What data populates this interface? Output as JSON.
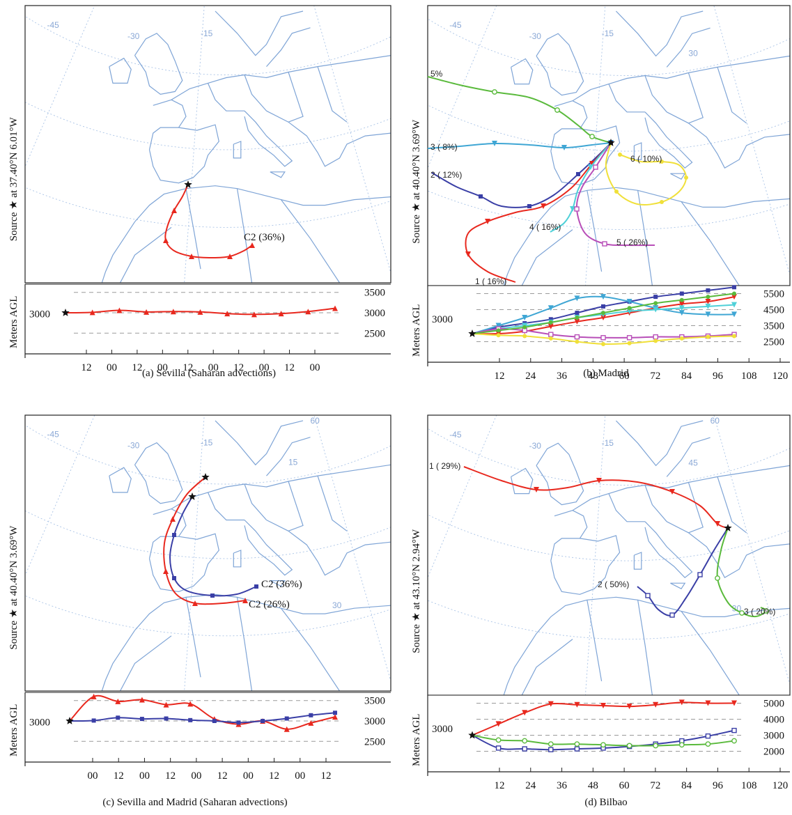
{
  "figure": {
    "panels": [
      {
        "id": "a",
        "caption": "(a)  Sevilla (Saharan advections)",
        "source_label": "Source ★ at 37.40°N 6.01°W",
        "y_axis_label": "Meters AGL",
        "start_level": "3000",
        "lat_lon_labels": [
          "-45",
          "-30",
          "-15"
        ],
        "cluster_labels": [
          "C2 (36%)"
        ]
      },
      {
        "id": "b",
        "caption": "(b)  Madrid",
        "source_label": "Source ★ at 40.40°N 3.69°W",
        "y_axis_label": "Meters AGL",
        "start_level": "3000",
        "lat_lon_labels": [
          "-45",
          "-30",
          "-15",
          "30"
        ],
        "cluster_labels": [
          "1 ( 16%)",
          "2 ( 12%)",
          "3 ( 8%)",
          "4 ( 16%)",
          "5 ( 26%)",
          "6 ( 10%)",
          "5%"
        ]
      },
      {
        "id": "c",
        "caption": "(c)  Sevilla and Madrid (Saharan advections)",
        "source_label": "Source ★ at 40.40°N 3.69°W",
        "y_axis_label": "Meters AGL",
        "start_level": "3000",
        "lat_lon_labels": [
          "-45",
          "-30",
          "-15",
          "15",
          "30",
          "60"
        ],
        "cluster_labels": [
          "C2 (36%)",
          "C2 (26%)"
        ]
      },
      {
        "id": "d",
        "caption": "(d)  Bilbao",
        "source_label": "Source ★ at 43.10°N 2.94°W",
        "y_axis_label": "Meters AGL",
        "start_level": "3000",
        "lat_lon_labels": [
          "-45",
          "-30",
          "-15",
          "45",
          "30",
          "60"
        ],
        "cluster_labels": [
          "1 ( 29%)",
          "2 ( 50%)",
          "3 ( 20%)"
        ]
      }
    ],
    "colors": {
      "red": "#e8281e",
      "blue": "#3a3fa6",
      "green": "#5aba3c",
      "cyan": "#3fa6d4",
      "teal": "#4fd0d8",
      "magenta": "#b84fb8",
      "yellow": "#f0e03a",
      "map_lines": "#7ea4d6"
    }
  },
  "chart_data": [
    {
      "type": "line",
      "panel": "a",
      "title": "",
      "ylabel": "Meters AGL",
      "x_tick_labels": [
        "12",
        "00",
        "12",
        "00",
        "12",
        "00",
        "12",
        "00",
        "12",
        "00"
      ],
      "y_tick_labels": [
        "3500",
        "3000",
        "2500"
      ],
      "ylim": [
        2300,
        3700
      ],
      "series": [
        {
          "name": "C2 (36%)",
          "color": "#e8281e",
          "values": [
            3000,
            3010,
            3060,
            3020,
            3030,
            3020,
            2980,
            2960,
            2980,
            3030,
            3110
          ]
        }
      ]
    },
    {
      "type": "line",
      "panel": "b",
      "title": "",
      "ylabel": "Meters AGL",
      "x": [
        0,
        12,
        24,
        36,
        48,
        60,
        72,
        84,
        96,
        108,
        120
      ],
      "x_tick_labels": [
        "12",
        "24",
        "36",
        "48",
        "60",
        "72",
        "84",
        "96",
        "108",
        "120"
      ],
      "y_tick_labels": [
        "5500",
        "4500",
        "3500",
        "2500"
      ],
      "ylim": [
        2000,
        6000
      ],
      "series": [
        {
          "name": "1 ( 16%)",
          "color": "#e8281e",
          "values": [
            3000,
            3000,
            3150,
            3450,
            3750,
            4000,
            4300,
            4600,
            4850,
            5000,
            5300
          ]
        },
        {
          "name": "2 ( 12%)",
          "color": "#3a3fa6",
          "values": [
            3000,
            3400,
            3650,
            3900,
            4300,
            4700,
            5000,
            5300,
            5500,
            5700,
            5900
          ]
        },
        {
          "name": "3 ( 8%)",
          "color": "#3fa6d4",
          "values": [
            3000,
            3500,
            4000,
            4600,
            5200,
            5300,
            5000,
            4600,
            4300,
            4200,
            4200
          ]
        },
        {
          "name": "4 ( 16%)",
          "color": "#4fd0d8",
          "values": [
            3000,
            3300,
            3500,
            3700,
            4000,
            4200,
            4400,
            4500,
            4600,
            4700,
            4800
          ]
        },
        {
          "name": "5 ( 26%)",
          "color": "#b84fb8",
          "values": [
            3000,
            3300,
            3200,
            2950,
            2800,
            2750,
            2750,
            2800,
            2800,
            2850,
            2950
          ]
        },
        {
          "name": "6 ( 10%)",
          "color": "#f0e03a",
          "values": [
            3000,
            2900,
            2850,
            2700,
            2500,
            2350,
            2400,
            2550,
            2700,
            2800,
            2850
          ]
        },
        {
          "name": "",
          "color": "#5aba3c",
          "values": [
            3000,
            3200,
            3400,
            3700,
            4000,
            4300,
            4600,
            4900,
            5100,
            5300,
            5500
          ]
        }
      ]
    },
    {
      "type": "line",
      "panel": "c",
      "title": "",
      "ylabel": "Meters AGL",
      "x_tick_labels": [
        "00",
        "12",
        "00",
        "12",
        "00",
        "12",
        "00",
        "12",
        "00",
        "12"
      ],
      "y_tick_labels": [
        "3500",
        "3000",
        "2500"
      ],
      "ylim": [
        2300,
        3700
      ],
      "series": [
        {
          "name": "C2 (26%)",
          "color": "#e8281e",
          "values": [
            3000,
            3600,
            3480,
            3520,
            3400,
            3420,
            3050,
            2920,
            3000,
            2800,
            2950,
            3100
          ]
        },
        {
          "name": "C2 (36%)",
          "color": "#3a3fa6",
          "values": [
            3000,
            3010,
            3080,
            3050,
            3060,
            3020,
            3000,
            2960,
            3000,
            3060,
            3140,
            3200
          ]
        }
      ]
    },
    {
      "type": "line",
      "panel": "d",
      "title": "",
      "ylabel": "Meters AGL",
      "x": [
        0,
        12,
        24,
        36,
        48,
        60,
        72,
        84,
        96,
        108,
        120
      ],
      "x_tick_labels": [
        "12",
        "24",
        "36",
        "48",
        "60",
        "72",
        "84",
        "96",
        "108",
        "120"
      ],
      "y_tick_labels": [
        "5000",
        "4000",
        "3000",
        "2000"
      ],
      "ylim": [
        1500,
        5500
      ],
      "series": [
        {
          "name": "1 ( 29%)",
          "color": "#e8281e",
          "values": [
            3000,
            3700,
            4400,
            4950,
            4900,
            4850,
            4800,
            4900,
            5050,
            5000,
            5000
          ]
        },
        {
          "name": "2 ( 50%)",
          "color": "#3a3fa6",
          "values": [
            3000,
            2200,
            2150,
            2100,
            2150,
            2200,
            2300,
            2450,
            2650,
            2950,
            3300
          ]
        },
        {
          "name": "3 ( 20%)",
          "color": "#5aba3c",
          "values": [
            3000,
            2700,
            2650,
            2450,
            2450,
            2400,
            2350,
            2350,
            2400,
            2450,
            2650
          ]
        }
      ]
    }
  ]
}
